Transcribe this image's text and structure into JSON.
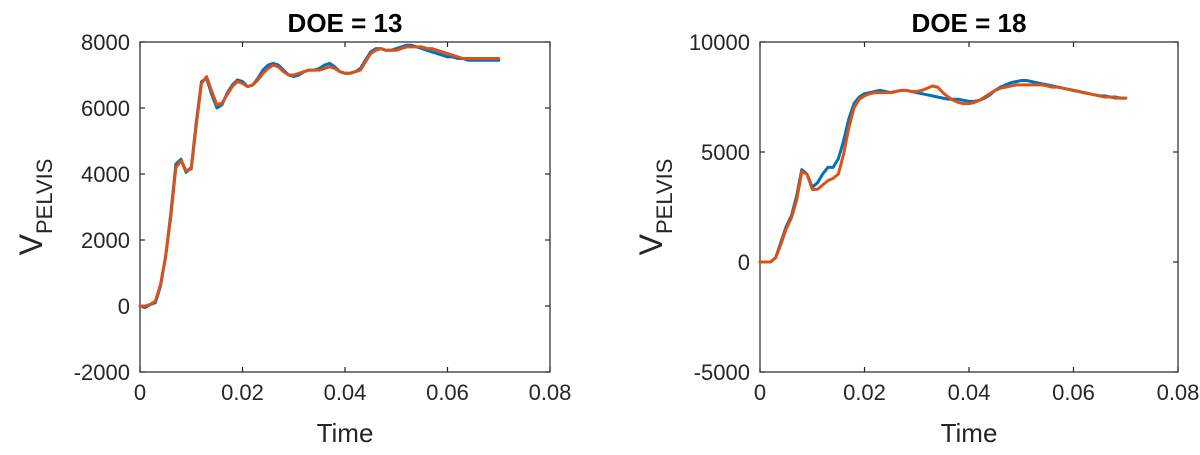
{
  "chart_data": [
    {
      "type": "line",
      "title": "DOE = 13",
      "xlabel": "Time",
      "ylabel_main": "V",
      "ylabel_sub": "PELVIS",
      "xlim": [
        0,
        0.08
      ],
      "ylim": [
        -2000,
        8000
      ],
      "xticks": [
        0,
        0.02,
        0.04,
        0.06,
        0.08
      ],
      "xtick_labels": [
        "0",
        "0.02",
        "0.04",
        "0.06",
        "0.08"
      ],
      "yticks": [
        -2000,
        0,
        2000,
        4000,
        6000,
        8000
      ],
      "ytick_labels": [
        "-2000",
        "0",
        "2000",
        "4000",
        "6000",
        "8000"
      ],
      "grid": false,
      "series": [
        {
          "color": "#0072BD",
          "x": [
            0,
            0.001,
            0.002,
            0.003,
            0.004,
            0.005,
            0.006,
            0.007,
            0.008,
            0.009,
            0.01,
            0.011,
            0.012,
            0.013,
            0.014,
            0.015,
            0.016,
            0.017,
            0.018,
            0.019,
            0.02,
            0.021,
            0.022,
            0.023,
            0.024,
            0.025,
            0.026,
            0.027,
            0.028,
            0.029,
            0.03,
            0.031,
            0.032,
            0.033,
            0.034,
            0.035,
            0.036,
            0.037,
            0.038,
            0.039,
            0.04,
            0.041,
            0.042,
            0.043,
            0.044,
            0.045,
            0.046,
            0.047,
            0.048,
            0.049,
            0.05,
            0.051,
            0.052,
            0.053,
            0.054,
            0.055,
            0.056,
            0.057,
            0.058,
            0.059,
            0.06,
            0.061,
            0.062,
            0.063,
            0.064,
            0.065,
            0.066,
            0.067,
            0.068,
            0.069,
            0.07
          ],
          "y": [
            0,
            -50,
            50,
            100,
            600,
            1500,
            2800,
            4300,
            4450,
            4050,
            4200,
            5600,
            6800,
            6900,
            6400,
            6000,
            6100,
            6450,
            6700,
            6850,
            6800,
            6650,
            6700,
            6900,
            7150,
            7300,
            7350,
            7300,
            7150,
            7000,
            6950,
            7000,
            7100,
            7150,
            7150,
            7200,
            7300,
            7350,
            7250,
            7100,
            7050,
            7050,
            7100,
            7200,
            7450,
            7700,
            7800,
            7800,
            7750,
            7750,
            7800,
            7850,
            7900,
            7900,
            7850,
            7800,
            7750,
            7700,
            7650,
            7600,
            7550,
            7550,
            7500,
            7500,
            7450,
            7450,
            7450,
            7450,
            7450,
            7450,
            7450
          ]
        },
        {
          "color": "#D95319",
          "x": [
            0,
            0.001,
            0.002,
            0.003,
            0.004,
            0.005,
            0.006,
            0.007,
            0.008,
            0.009,
            0.01,
            0.011,
            0.012,
            0.013,
            0.014,
            0.015,
            0.016,
            0.017,
            0.018,
            0.019,
            0.02,
            0.021,
            0.022,
            0.023,
            0.024,
            0.025,
            0.026,
            0.027,
            0.028,
            0.029,
            0.03,
            0.031,
            0.032,
            0.033,
            0.034,
            0.035,
            0.036,
            0.037,
            0.038,
            0.039,
            0.04,
            0.041,
            0.042,
            0.043,
            0.044,
            0.045,
            0.046,
            0.047,
            0.048,
            0.049,
            0.05,
            0.051,
            0.052,
            0.053,
            0.054,
            0.055,
            0.056,
            0.057,
            0.058,
            0.059,
            0.06,
            0.061,
            0.062,
            0.063,
            0.064,
            0.065,
            0.066,
            0.067,
            0.068,
            0.069,
            0.07
          ],
          "y": [
            0,
            0,
            50,
            150,
            650,
            1500,
            2700,
            4200,
            4400,
            4100,
            4150,
            5500,
            6750,
            6950,
            6500,
            6100,
            6150,
            6400,
            6650,
            6800,
            6750,
            6650,
            6700,
            6850,
            7050,
            7200,
            7300,
            7250,
            7100,
            7000,
            7000,
            7050,
            7100,
            7150,
            7150,
            7150,
            7200,
            7250,
            7200,
            7100,
            7050,
            7050,
            7100,
            7150,
            7400,
            7650,
            7750,
            7800,
            7750,
            7750,
            7750,
            7800,
            7850,
            7850,
            7850,
            7850,
            7800,
            7800,
            7750,
            7700,
            7650,
            7600,
            7550,
            7500,
            7500,
            7500,
            7500,
            7500,
            7500,
            7500,
            7500
          ]
        }
      ]
    },
    {
      "type": "line",
      "title": "DOE = 18",
      "xlabel": "Time",
      "ylabel_main": "V",
      "ylabel_sub": "PELVIS",
      "xlim": [
        0,
        0.08
      ],
      "ylim": [
        -5000,
        10000
      ],
      "xticks": [
        0,
        0.02,
        0.04,
        0.06,
        0.08
      ],
      "xtick_labels": [
        "0",
        "0.02",
        "0.04",
        "0.06",
        "0.08"
      ],
      "yticks": [
        -5000,
        0,
        5000,
        10000
      ],
      "ytick_labels": [
        "-5000",
        "0",
        "5000",
        "10000"
      ],
      "grid": false,
      "series": [
        {
          "color": "#0072BD",
          "x": [
            0,
            0.001,
            0.002,
            0.003,
            0.004,
            0.005,
            0.006,
            0.007,
            0.008,
            0.009,
            0.01,
            0.011,
            0.012,
            0.013,
            0.014,
            0.015,
            0.016,
            0.017,
            0.018,
            0.019,
            0.02,
            0.021,
            0.022,
            0.023,
            0.024,
            0.025,
            0.026,
            0.027,
            0.028,
            0.029,
            0.03,
            0.031,
            0.032,
            0.033,
            0.034,
            0.035,
            0.036,
            0.037,
            0.038,
            0.039,
            0.04,
            0.041,
            0.042,
            0.043,
            0.044,
            0.045,
            0.046,
            0.047,
            0.048,
            0.049,
            0.05,
            0.051,
            0.052,
            0.053,
            0.054,
            0.055,
            0.056,
            0.057,
            0.058,
            0.059,
            0.06,
            0.061,
            0.062,
            0.063,
            0.064,
            0.065,
            0.066,
            0.067,
            0.068,
            0.069,
            0.07
          ],
          "y": [
            0,
            0,
            0,
            200,
            900,
            1600,
            2100,
            3000,
            4200,
            4000,
            3400,
            3600,
            4000,
            4300,
            4300,
            4700,
            5500,
            6500,
            7200,
            7500,
            7650,
            7700,
            7750,
            7800,
            7750,
            7700,
            7750,
            7800,
            7800,
            7750,
            7700,
            7650,
            7600,
            7550,
            7500,
            7450,
            7400,
            7400,
            7400,
            7350,
            7300,
            7300,
            7350,
            7450,
            7600,
            7800,
            7950,
            8050,
            8150,
            8200,
            8250,
            8250,
            8200,
            8150,
            8100,
            8050,
            8000,
            7950,
            7900,
            7850,
            7800,
            7750,
            7700,
            7650,
            7600,
            7550,
            7550,
            7500,
            7500,
            7450,
            7450
          ]
        },
        {
          "color": "#D95319",
          "x": [
            0,
            0.001,
            0.002,
            0.003,
            0.004,
            0.005,
            0.006,
            0.007,
            0.008,
            0.009,
            0.01,
            0.011,
            0.012,
            0.013,
            0.014,
            0.015,
            0.016,
            0.017,
            0.018,
            0.019,
            0.02,
            0.021,
            0.022,
            0.023,
            0.024,
            0.025,
            0.026,
            0.027,
            0.028,
            0.029,
            0.03,
            0.031,
            0.032,
            0.033,
            0.034,
            0.035,
            0.036,
            0.037,
            0.038,
            0.039,
            0.04,
            0.041,
            0.042,
            0.043,
            0.044,
            0.045,
            0.046,
            0.047,
            0.048,
            0.049,
            0.05,
            0.051,
            0.052,
            0.053,
            0.054,
            0.055,
            0.056,
            0.057,
            0.058,
            0.059,
            0.06,
            0.061,
            0.062,
            0.063,
            0.064,
            0.065,
            0.066,
            0.067,
            0.068,
            0.069,
            0.07
          ],
          "y": [
            0,
            0,
            0,
            200,
            800,
            1500,
            2000,
            2800,
            4100,
            4000,
            3300,
            3300,
            3500,
            3700,
            3800,
            4000,
            4900,
            6100,
            7000,
            7400,
            7550,
            7650,
            7700,
            7700,
            7700,
            7700,
            7750,
            7800,
            7800,
            7750,
            7750,
            7800,
            7900,
            8000,
            7950,
            7700,
            7500,
            7350,
            7250,
            7200,
            7200,
            7250,
            7350,
            7500,
            7650,
            7800,
            7900,
            7950,
            8000,
            8050,
            8050,
            8050,
            8050,
            8050,
            8050,
            8000,
            7950,
            7950,
            7900,
            7850,
            7800,
            7750,
            7700,
            7650,
            7600,
            7550,
            7500,
            7500,
            7450,
            7450,
            7450
          ]
        }
      ]
    }
  ]
}
